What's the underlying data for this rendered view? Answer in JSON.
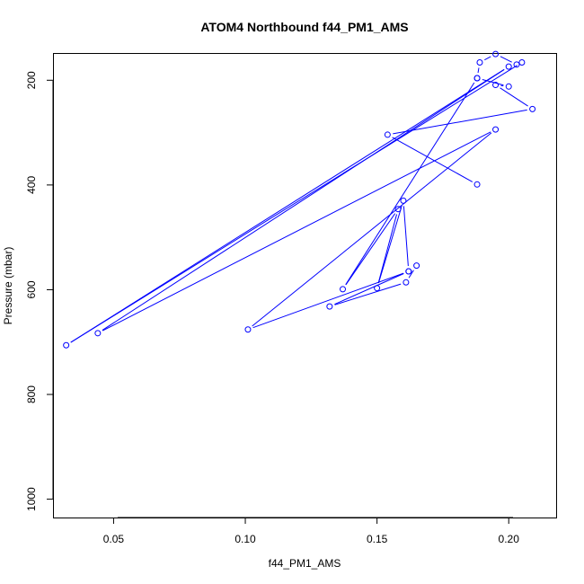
{
  "chart_data": {
    "type": "line",
    "title": "ATOM4 Northbound f44_PM1_AMS",
    "xlabel": "f44_PM1_AMS",
    "ylabel": "Pressure (mbar)",
    "xlim": [
      0.027,
      0.218
    ],
    "ylim": [
      1035,
      148
    ],
    "y_reversed": true,
    "grid": false,
    "x_ticks": [
      0.05,
      0.1,
      0.15,
      0.2
    ],
    "x_tick_labels": [
      "0.05",
      "0.10",
      "0.15",
      "0.20"
    ],
    "y_ticks": [
      200,
      400,
      600,
      800,
      1000
    ],
    "y_tick_labels": [
      "200",
      "400",
      "600",
      "800",
      "1000"
    ],
    "series": [
      {
        "color": "#0000ff",
        "marker": "open-circle",
        "x": [
          0.188,
          0.154,
          0.209,
          0.195,
          0.2,
          0.188,
          0.189,
          0.195,
          0.203,
          0.205,
          0.032,
          0.2,
          0.044,
          0.195,
          0.101,
          0.162,
          0.132,
          0.161,
          0.165,
          0.162,
          0.16,
          0.15,
          0.158,
          0.137,
          0.188
        ],
        "y": [
          399,
          304,
          255,
          209,
          212,
          196,
          166,
          150,
          170,
          166,
          706,
          174,
          683,
          294,
          676,
          565,
          632,
          586,
          554,
          565,
          430,
          597,
          446,
          599,
          196
        ]
      }
    ]
  }
}
